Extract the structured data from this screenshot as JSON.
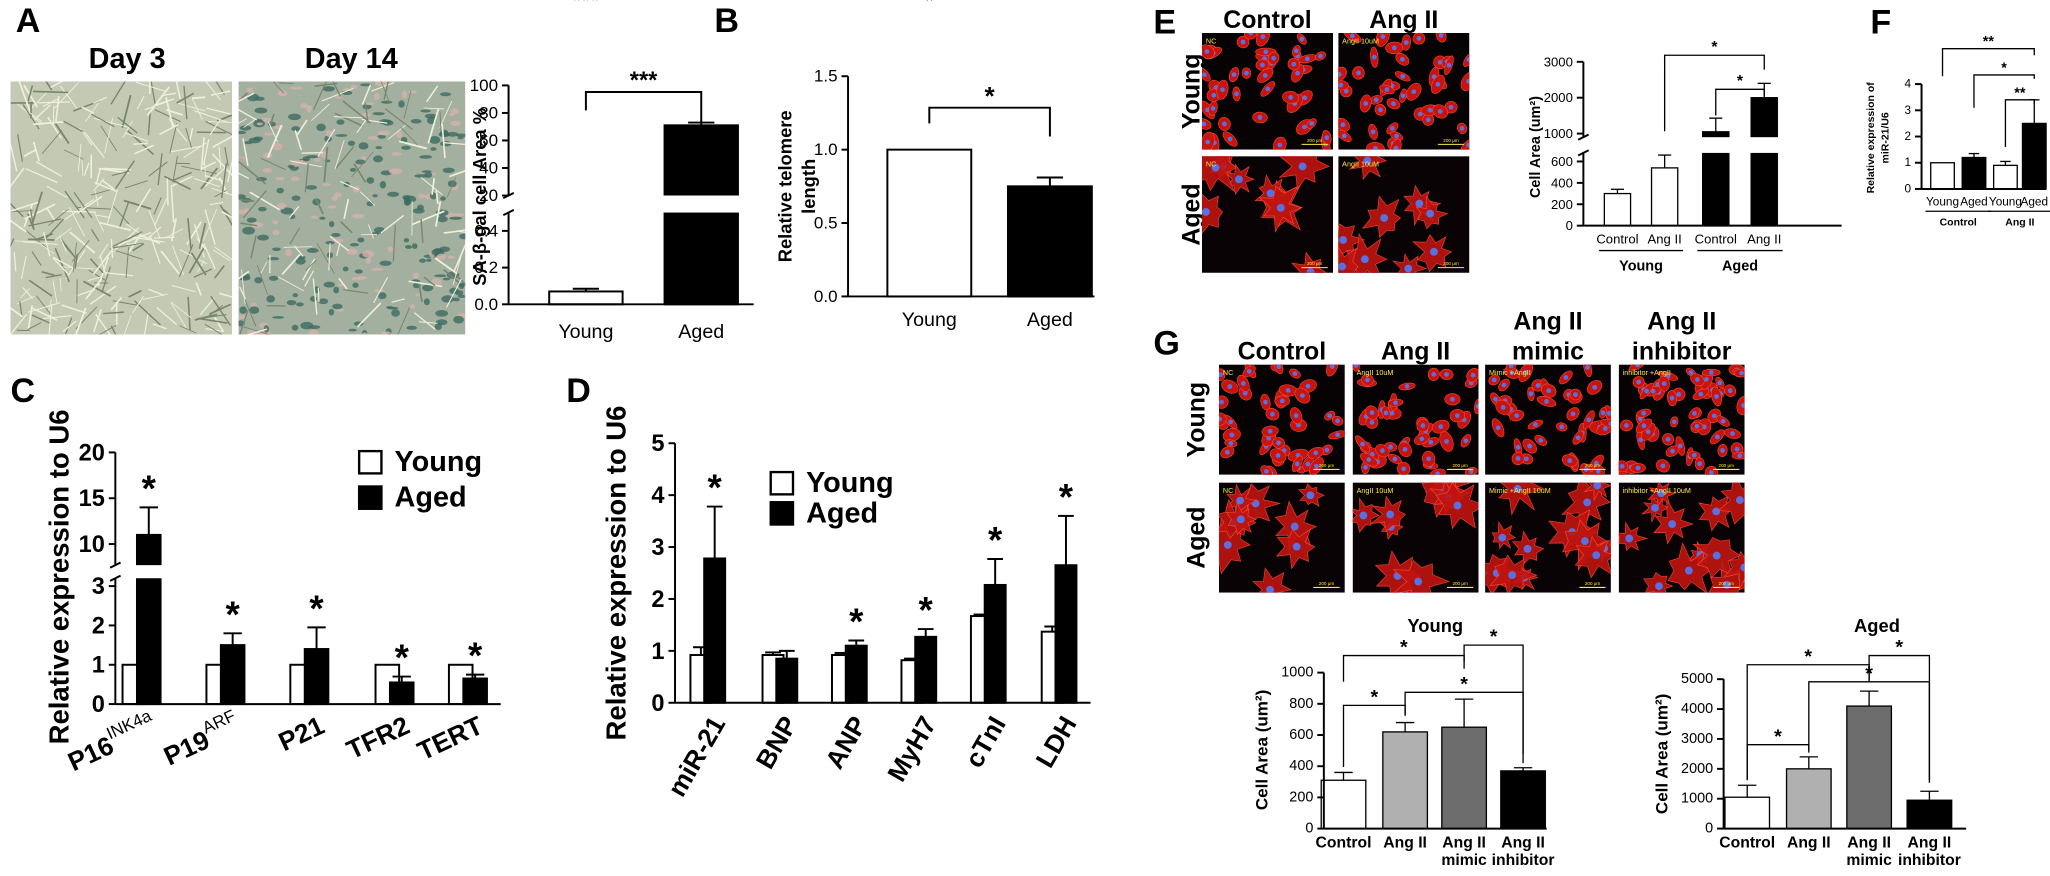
{
  "panel_labels": [
    "A",
    "B",
    "C",
    "D",
    "E",
    "F",
    "G"
  ],
  "images": {
    "A": {
      "labels": [
        "Day 3",
        "Day 14"
      ]
    },
    "E": {
      "columns": [
        "Control",
        "Ang II"
      ],
      "rows": [
        "Young",
        "Aged"
      ],
      "insets": [
        [
          "NC",
          "AngII 10uM"
        ],
        [
          "NC",
          "AngII 10uM"
        ]
      ],
      "scale_bar": "200 μm"
    },
    "G": {
      "columns": [
        [
          "Control"
        ],
        [
          "Ang II"
        ],
        [
          "Ang II",
          "mimic"
        ],
        [
          "Ang II",
          "inhibitor"
        ]
      ],
      "rows": [
        "Young",
        "Aged"
      ],
      "insets": [
        [
          "NC",
          "AngII 10uM",
          "Mimic +AngII",
          "inhibitor +AngII"
        ],
        [
          "NC",
          "AngII 10uM",
          "Mimic +AngII 10uM",
          "inhibitor +AngII 10uM"
        ]
      ],
      "scale_bar": "200 μm"
    }
  },
  "chart_data": [
    {
      "type": "bar",
      "y_label": "SA-β-gal cell Area %",
      "categories": [
        "Young",
        "Aged"
      ],
      "values": [
        0.07,
        71
      ],
      "errors": [
        0.015,
        2
      ],
      "colors": [
        "#ffffff",
        "#000000"
      ],
      "ylim": [
        0,
        100
      ],
      "ybreak": [
        0.5,
        20
      ],
      "yticks": [
        {
          "value": 0,
          "label": "0.0"
        },
        0.2,
        0.4,
        20,
        40,
        60,
        80,
        100
      ],
      "annotations": [
        "***"
      ]
    },
    {
      "type": "bar",
      "y_label": [
        "Relative telomere",
        "length"
      ],
      "categories": [
        "Young",
        "Aged"
      ],
      "values": [
        1.0,
        0.75
      ],
      "errors": [
        null,
        0.06
      ],
      "colors": [
        "#ffffff",
        "#000000"
      ],
      "ylim": [
        0,
        1.5
      ],
      "yticks": [
        {
          "value": 0,
          "label": "0.0"
        },
        0.5,
        {
          "value": 1,
          "label": "1.0"
        },
        1.5
      ],
      "annotations": [
        "*"
      ]
    },
    {
      "type": "grouped_bar",
      "y_label": "Relative expression to U6",
      "categories": [
        "P16",
        "P19",
        "P21",
        "TFR2",
        "TERT"
      ],
      "category_superscripts": [
        "INK4a",
        "ARF",
        null,
        null,
        null
      ],
      "series": [
        {
          "name": "Young",
          "color": "#ffffff",
          "values": [
            1,
            1,
            1,
            1,
            1
          ],
          "errors": [
            null,
            null,
            null,
            null,
            null
          ]
        },
        {
          "name": "Aged",
          "color": "#000000",
          "values": [
            11,
            1.5,
            1.4,
            0.55,
            0.65
          ],
          "errors": [
            3,
            0.3,
            0.55,
            0.15,
            0.1
          ],
          "annotations": [
            "*",
            "*",
            "*",
            "*",
            "*"
          ]
        }
      ],
      "ylim": [
        0,
        20
      ],
      "ybreak": [
        3.2,
        7.7
      ],
      "yticks": [
        0,
        1,
        2,
        3,
        10,
        15,
        20
      ]
    },
    {
      "type": "grouped_bar",
      "y_label": "Relative expression to U6",
      "categories": [
        "miR-21",
        "BNP",
        "ANP",
        "MyH7",
        "cTnI",
        "LDH"
      ],
      "series": [
        {
          "name": "Young",
          "color": "#ffffff",
          "values": [
            0.92,
            0.92,
            0.92,
            0.82,
            1.67,
            1.37
          ],
          "errors": [
            0.15,
            0.05,
            0.04,
            0.03,
            0.03,
            0.1
          ]
        },
        {
          "name": "Aged",
          "color": "#000000",
          "values": [
            2.78,
            0.85,
            1.1,
            1.27,
            2.27,
            2.65
          ],
          "errors": [
            1.0,
            0.15,
            0.1,
            0.15,
            0.5,
            0.95
          ],
          "annotations": [
            "*",
            null,
            "*",
            "*",
            "*",
            "*"
          ]
        }
      ],
      "ylim": [
        0,
        5
      ],
      "yticks": [
        0,
        1,
        2,
        3,
        4,
        5
      ]
    },
    {
      "type": "bar",
      "y_label": "Cell Area (um²)",
      "categories": [
        "Control",
        "Ang II",
        "Control",
        "Ang II"
      ],
      "groups": [
        "Young",
        "Aged"
      ],
      "values": [
        300,
        540,
        1050,
        2000
      ],
      "errors": [
        40,
        120,
        380,
        400
      ],
      "colors": [
        "#ffffff",
        "#ffffff",
        "#000000",
        "#000000"
      ],
      "ylim": [
        0,
        3000
      ],
      "ybreak": [
        680,
        900
      ],
      "yticks": [
        0,
        200,
        400,
        600,
        1000,
        2000,
        3000
      ],
      "annotations": [
        "*",
        "*"
      ]
    },
    {
      "type": "bar",
      "y_label": [
        "Relative expression of",
        "miR-21/U6"
      ],
      "categories": [
        "Young",
        "Aged",
        "Young",
        "Aged"
      ],
      "groups": [
        "Control",
        "Ang II"
      ],
      "values": [
        1.0,
        1.2,
        0.9,
        2.5
      ],
      "errors": [
        null,
        0.15,
        0.15,
        0.9
      ],
      "colors": [
        "#ffffff",
        "#000000",
        "#ffffff",
        "#000000"
      ],
      "ylim": [
        0,
        4
      ],
      "yticks": [
        0,
        1,
        2,
        3,
        4
      ],
      "annotations": [
        "**",
        "*",
        "**"
      ]
    },
    {
      "type": "bar",
      "title": "Young",
      "y_label": "Cell Area (um²)",
      "categories": [
        [
          "Control"
        ],
        [
          "Ang II"
        ],
        [
          "Ang II",
          "mimic"
        ],
        [
          "Ang II",
          "inhibitor"
        ]
      ],
      "values": [
        310,
        620,
        650,
        370
      ],
      "errors": [
        50,
        60,
        180,
        20
      ],
      "colors": [
        "#ffffff",
        "#b0b0b0",
        "#6d6d6d",
        "#000000"
      ],
      "ylim": [
        0,
        1000
      ],
      "yticks": [
        0,
        200,
        400,
        600,
        800,
        1000
      ],
      "annotations": [
        "*",
        "*",
        "*",
        "*"
      ]
    },
    {
      "type": "bar",
      "title": "Aged",
      "y_label": "Cell Area (um²)",
      "categories": [
        [
          "Control"
        ],
        [
          "Ang II"
        ],
        [
          "Ang II",
          "mimic"
        ],
        [
          "Ang II",
          "inhibitor"
        ]
      ],
      "values": [
        1050,
        2000,
        4100,
        950
      ],
      "errors": [
        400,
        400,
        500,
        300
      ],
      "colors": [
        "#ffffff",
        "#b0b0b0",
        "#6d6d6d",
        "#000000"
      ],
      "ylim": [
        0,
        5000
      ],
      "yticks": [
        0,
        1000,
        2000,
        3000,
        4000,
        5000
      ],
      "annotations": [
        "*",
        "*",
        "*",
        "*"
      ]
    }
  ]
}
